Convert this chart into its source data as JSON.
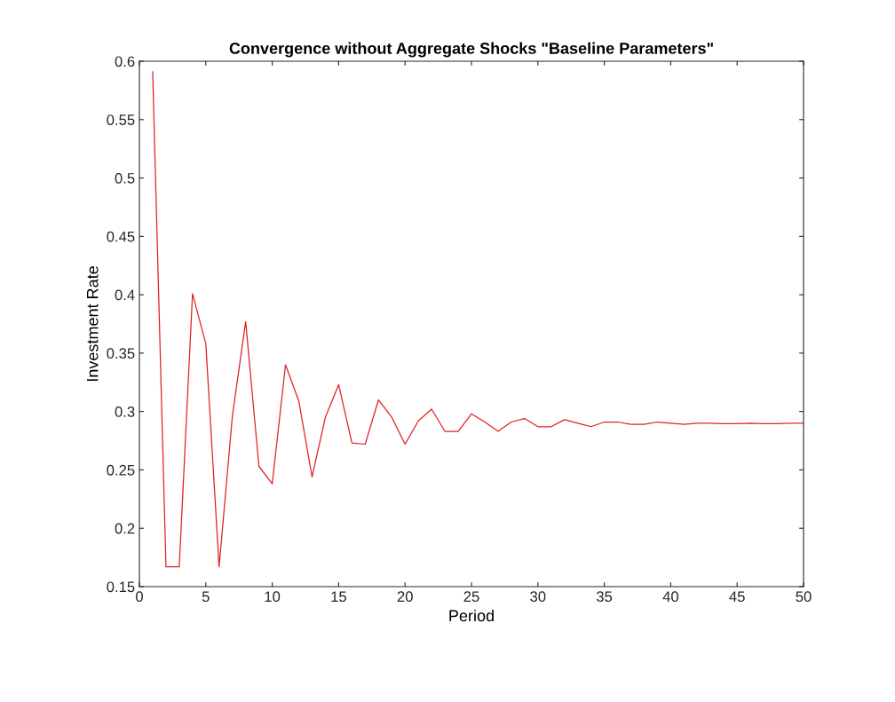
{
  "chart_data": {
    "type": "line",
    "title": "Convergence without Aggregate Shocks \"Baseline Parameters\"",
    "xlabel": "Period",
    "ylabel": "Investment Rate",
    "x": [
      1,
      2,
      3,
      4,
      5,
      6,
      7,
      8,
      9,
      10,
      11,
      12,
      13,
      14,
      15,
      16,
      17,
      18,
      19,
      20,
      21,
      22,
      23,
      24,
      25,
      26,
      27,
      28,
      29,
      30,
      31,
      32,
      33,
      34,
      35,
      36,
      37,
      38,
      39,
      40,
      41,
      42,
      43,
      44,
      45,
      46,
      47,
      48,
      49,
      50
    ],
    "series": [
      {
        "color": "#e02020",
        "values": [
          0.591,
          0.167,
          0.167,
          0.401,
          0.358,
          0.167,
          0.296,
          0.377,
          0.253,
          0.238,
          0.34,
          0.309,
          0.244,
          0.295,
          0.323,
          0.273,
          0.272,
          0.31,
          0.295,
          0.272,
          0.292,
          0.302,
          0.283,
          0.283,
          0.298,
          0.291,
          0.283,
          0.291,
          0.294,
          0.287,
          0.287,
          0.293,
          0.29,
          0.287,
          0.291,
          0.291,
          0.289,
          0.289,
          0.291,
          0.29,
          0.289,
          0.29,
          0.29,
          0.2895,
          0.2895,
          0.29,
          0.2895,
          0.2895,
          0.29,
          0.29
        ]
      }
    ],
    "xlim": [
      0,
      50
    ],
    "xticks": [
      0,
      5,
      10,
      15,
      20,
      25,
      30,
      35,
      40,
      45,
      50
    ],
    "ylim": [
      0.15,
      0.6
    ],
    "yticks": [
      0.15,
      0.2,
      0.25,
      0.3,
      0.35,
      0.4,
      0.45,
      0.5,
      0.55,
      0.6
    ],
    "grid": false,
    "legend": false,
    "marker": "none",
    "line_style": "solid"
  }
}
